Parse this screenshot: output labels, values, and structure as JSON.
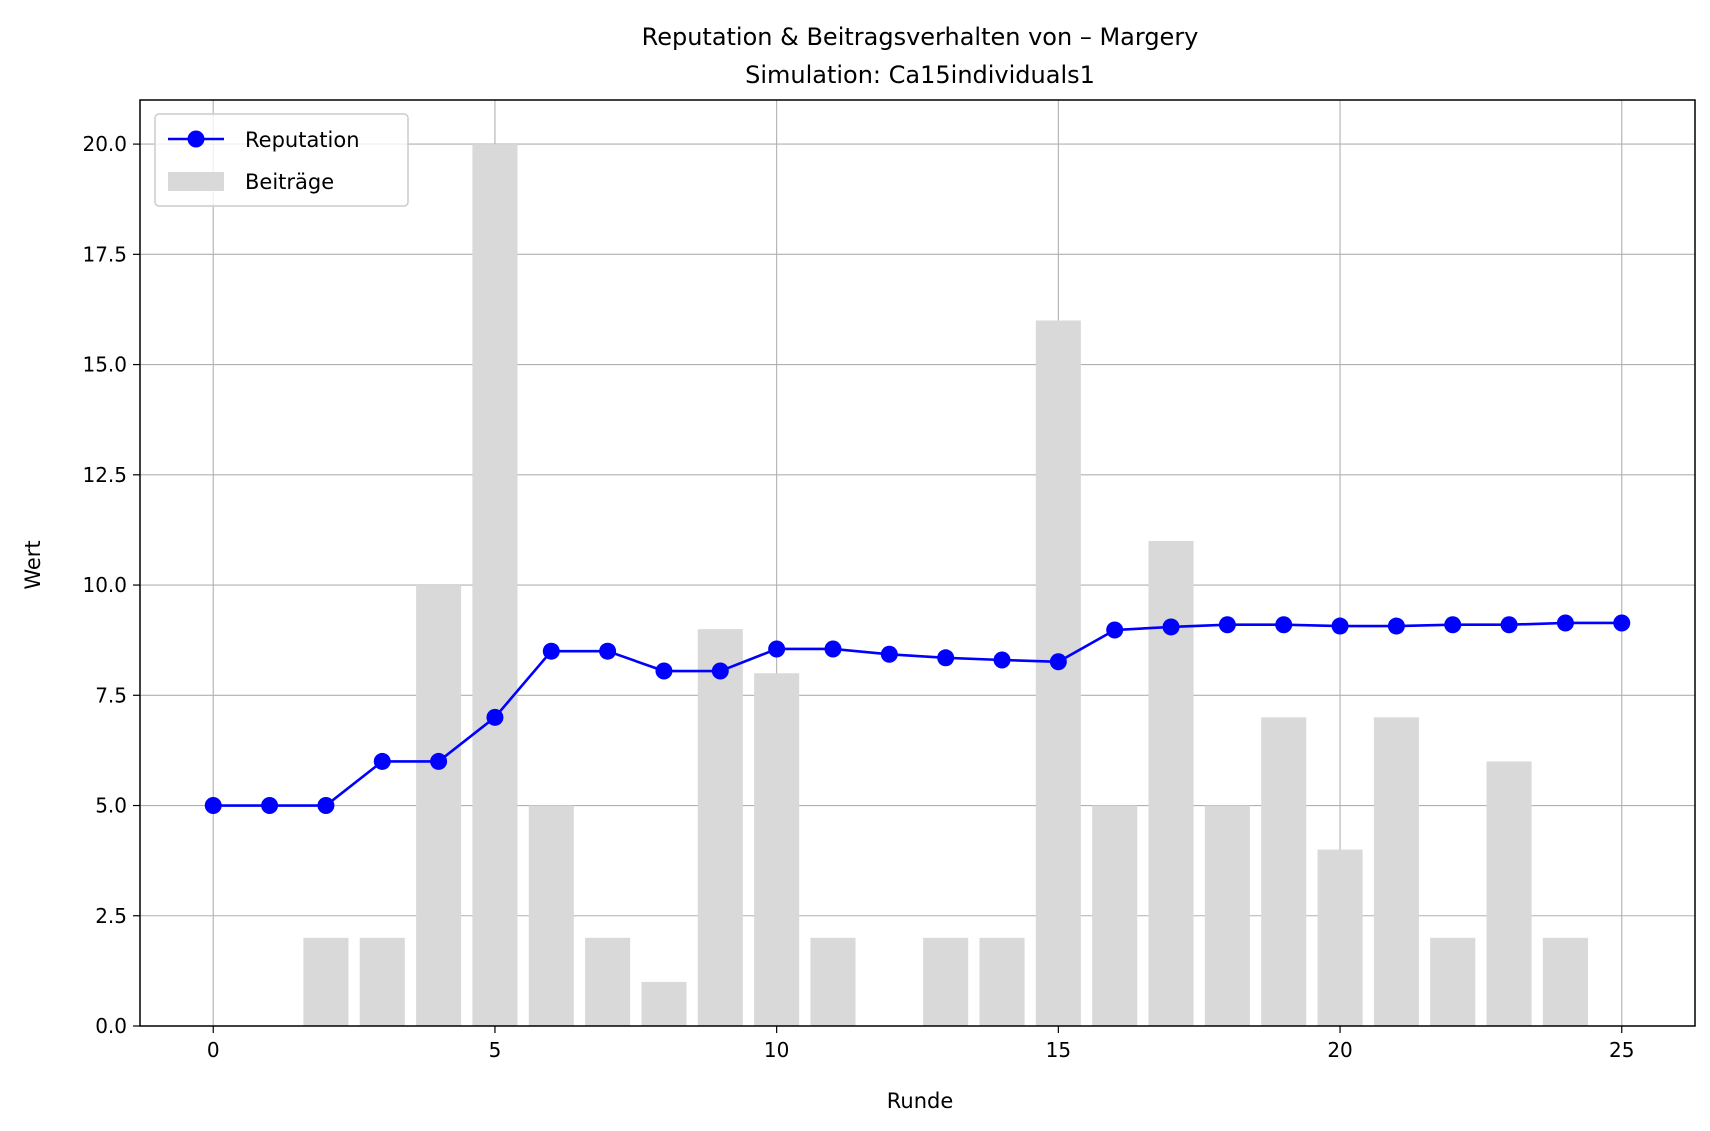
{
  "chart_data": {
    "type": "bar+line",
    "title": "Reputation & Beitragsverhalten von – Margery",
    "subtitle": "Simulation: Ca15individuals1",
    "xlabel": "Runde",
    "ylabel": "Wert",
    "xlim": [
      -1.3,
      26.3
    ],
    "ylim": [
      0,
      21
    ],
    "xticks": [
      0,
      5,
      10,
      15,
      20,
      25
    ],
    "yticks": [
      0.0,
      2.5,
      5.0,
      7.5,
      10.0,
      12.5,
      15.0,
      17.5,
      20.0
    ],
    "grid": true,
    "legend_position": "top-left",
    "series": [
      {
        "name": "Reputation",
        "kind": "line",
        "color": "#0000ff",
        "marker": "circle",
        "x": [
          0,
          1,
          2,
          3,
          4,
          5,
          6,
          7,
          8,
          9,
          10,
          11,
          12,
          13,
          14,
          15,
          16,
          17,
          18,
          19,
          20,
          21,
          22,
          23,
          24,
          25
        ],
        "values": [
          5.0,
          5.0,
          5.0,
          6.0,
          6.0,
          7.0,
          8.5,
          8.5,
          8.05,
          8.05,
          8.55,
          8.55,
          8.43,
          8.35,
          8.3,
          8.26,
          8.98,
          9.05,
          9.1,
          9.1,
          9.07,
          9.07,
          9.1,
          9.1,
          9.14,
          9.14
        ]
      },
      {
        "name": "Beiträge",
        "kind": "bar",
        "color": "#d9d9d9",
        "x": [
          0,
          1,
          2,
          3,
          4,
          5,
          6,
          7,
          8,
          9,
          10,
          11,
          12,
          13,
          14,
          15,
          16,
          17,
          18,
          19,
          20,
          21,
          22,
          23,
          24,
          25
        ],
        "values": [
          0,
          0,
          2,
          2,
          10,
          20,
          5,
          2,
          1,
          9,
          8,
          2,
          0,
          2,
          2,
          16,
          5,
          11,
          5,
          7,
          4,
          7,
          2,
          6,
          2,
          0
        ]
      }
    ]
  }
}
